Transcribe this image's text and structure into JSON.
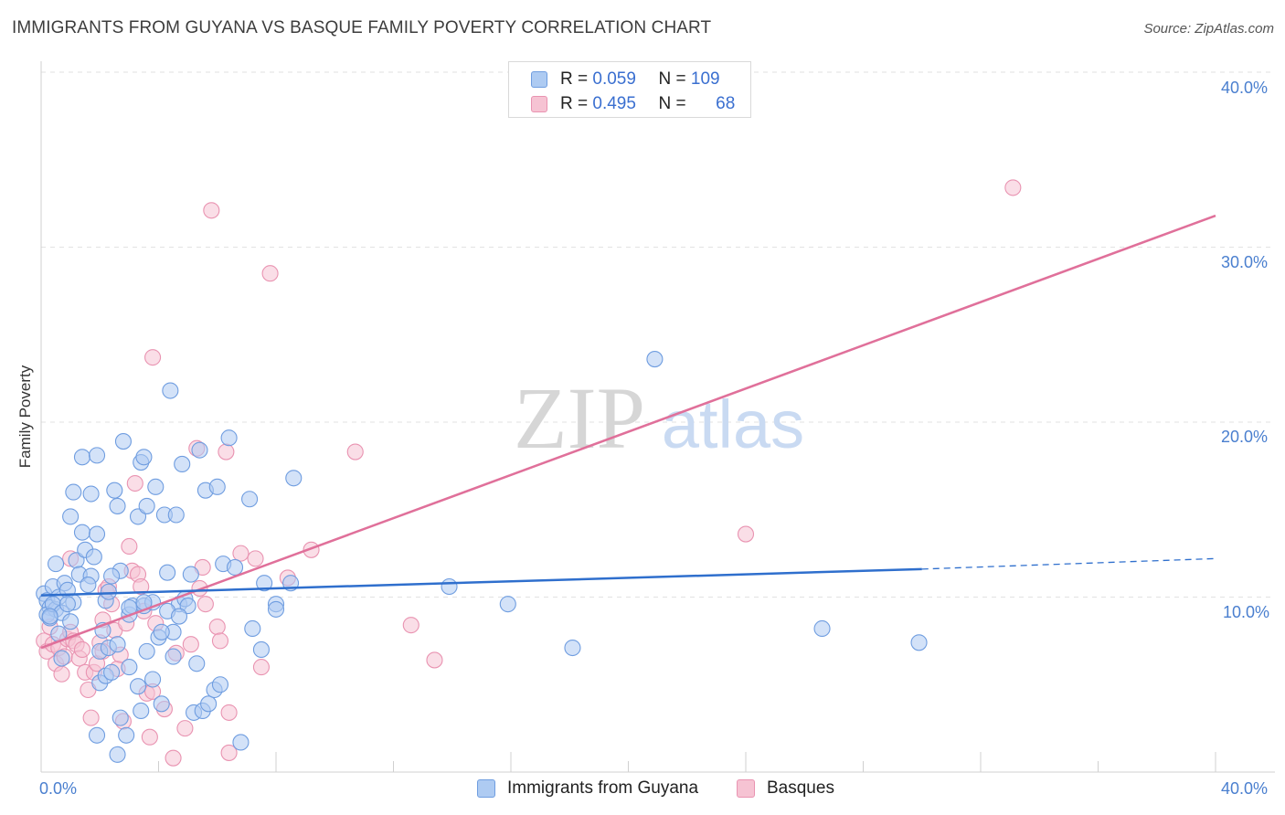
{
  "header": {
    "title": "IMMIGRANTS FROM GUYANA VS BASQUE FAMILY POVERTY CORRELATION CHART",
    "source": "Source: ZipAtlas.com"
  },
  "watermark": {
    "zip": "ZIP",
    "atlas": "atlas"
  },
  "legend": {
    "rows": [
      {
        "r_label": "R =",
        "r_value": "0.059",
        "n_label": "N =",
        "n_value": "109"
      },
      {
        "r_label": "R =",
        "r_value": "0.495",
        "n_label": "N =",
        "n_value": "68"
      }
    ]
  },
  "colors": {
    "series1_fill": "#aecbf2",
    "series1_stroke": "#6f9de0",
    "series1_line": "#2f6fcd",
    "series2_fill": "#f6c3d3",
    "series2_stroke": "#e993b1",
    "series2_line": "#e0709a",
    "tick_label": "#4a7fcf",
    "grid": "#e2e2e2"
  },
  "chart_data": {
    "type": "scatter",
    "title": "IMMIGRANTS FROM GUYANA VS BASQUE FAMILY POVERTY CORRELATION CHART",
    "xlabel": "",
    "ylabel": "Family Poverty",
    "xlim": [
      0,
      40
    ],
    "ylim": [
      0,
      40
    ],
    "x_tick_labels": [
      "0.0%",
      "40.0%"
    ],
    "y_ticks": [
      10,
      20,
      30,
      40
    ],
    "y_tick_labels": [
      "10.0%",
      "20.0%",
      "30.0%",
      "40.0%"
    ],
    "grid": true,
    "legend_position": "bottom",
    "series": [
      {
        "name": "Immigrants from Guyana",
        "r": 0.059,
        "n": 109,
        "trend": {
          "x": [
            0,
            30
          ],
          "y": [
            10.1,
            11.6
          ],
          "dashed_to_x": 40,
          "dashed_y": 12.2
        },
        "points": [
          [
            0.1,
            10.2
          ],
          [
            0.2,
            9.8
          ],
          [
            0.3,
            9.4
          ],
          [
            0.2,
            9.0
          ],
          [
            0.4,
            10.6
          ],
          [
            0.5,
            9.3
          ],
          [
            0.3,
            8.8
          ],
          [
            0.6,
            10.0
          ],
          [
            0.4,
            9.6
          ],
          [
            0.7,
            9.1
          ],
          [
            0.8,
            10.8
          ],
          [
            0.9,
            10.4
          ],
          [
            1.0,
            8.6
          ],
          [
            0.6,
            7.9
          ],
          [
            1.1,
            9.7
          ],
          [
            1.2,
            12.1
          ],
          [
            1.0,
            14.6
          ],
          [
            1.1,
            16.0
          ],
          [
            1.4,
            13.7
          ],
          [
            1.5,
            12.7
          ],
          [
            1.4,
            18.0
          ],
          [
            1.7,
            15.9
          ],
          [
            1.8,
            12.3
          ],
          [
            1.9,
            13.6
          ],
          [
            1.9,
            18.1
          ],
          [
            2.2,
            9.8
          ],
          [
            2.3,
            10.3
          ],
          [
            2.1,
            8.1
          ],
          [
            2.0,
            6.9
          ],
          [
            2.3,
            7.1
          ],
          [
            2.0,
            5.1
          ],
          [
            2.2,
            5.5
          ],
          [
            2.5,
            16.1
          ],
          [
            2.6,
            15.2
          ],
          [
            2.7,
            11.5
          ],
          [
            2.8,
            18.9
          ],
          [
            2.4,
            5.7
          ],
          [
            2.6,
            7.3
          ],
          [
            3.0,
            9.0
          ],
          [
            3.1,
            9.5
          ],
          [
            3.0,
            6.0
          ],
          [
            3.3,
            14.6
          ],
          [
            3.4,
            17.7
          ],
          [
            3.5,
            18.0
          ],
          [
            3.6,
            15.2
          ],
          [
            3.5,
            9.5
          ],
          [
            3.3,
            4.9
          ],
          [
            3.4,
            3.5
          ],
          [
            3.6,
            6.9
          ],
          [
            3.8,
            5.3
          ],
          [
            3.8,
            9.7
          ],
          [
            3.9,
            16.3
          ],
          [
            4.0,
            7.7
          ],
          [
            4.1,
            3.9
          ],
          [
            4.2,
            14.7
          ],
          [
            4.3,
            11.4
          ],
          [
            4.4,
            21.8
          ],
          [
            4.5,
            6.6
          ],
          [
            4.5,
            8.0
          ],
          [
            4.6,
            14.7
          ],
          [
            4.7,
            9.6
          ],
          [
            4.8,
            17.6
          ],
          [
            4.9,
            9.9
          ],
          [
            5.0,
            9.5
          ],
          [
            5.1,
            11.3
          ],
          [
            5.2,
            3.4
          ],
          [
            5.3,
            6.2
          ],
          [
            5.4,
            18.4
          ],
          [
            5.5,
            3.5
          ],
          [
            5.6,
            16.1
          ],
          [
            5.7,
            3.9
          ],
          [
            5.9,
            4.7
          ],
          [
            6.0,
            16.3
          ],
          [
            6.1,
            5.0
          ],
          [
            6.2,
            11.9
          ],
          [
            6.4,
            19.1
          ],
          [
            6.6,
            11.7
          ],
          [
            6.8,
            1.7
          ],
          [
            7.1,
            15.6
          ],
          [
            7.2,
            8.2
          ],
          [
            7.5,
            7.0
          ],
          [
            7.6,
            10.8
          ],
          [
            8.0,
            9.6
          ],
          [
            8.0,
            9.3
          ],
          [
            8.5,
            10.8
          ],
          [
            8.6,
            16.8
          ],
          [
            13.9,
            10.6
          ],
          [
            15.9,
            9.6
          ],
          [
            18.1,
            7.1
          ],
          [
            20.9,
            23.6
          ],
          [
            26.6,
            8.2
          ],
          [
            29.9,
            7.4
          ],
          [
            0.5,
            11.9
          ],
          [
            0.9,
            9.6
          ],
          [
            1.3,
            11.3
          ],
          [
            1.7,
            11.2
          ],
          [
            2.4,
            11.2
          ],
          [
            2.9,
            2.1
          ],
          [
            3.0,
            9.4
          ],
          [
            3.5,
            9.7
          ],
          [
            4.1,
            8.0
          ],
          [
            4.3,
            9.2
          ],
          [
            4.7,
            8.9
          ],
          [
            2.6,
            1.0
          ],
          [
            0.3,
            8.9
          ],
          [
            1.6,
            10.7
          ],
          [
            1.9,
            2.1
          ],
          [
            0.7,
            6.5
          ],
          [
            2.7,
            3.1
          ]
        ]
      },
      {
        "name": "Basques",
        "r": 0.495,
        "n": 68,
        "trend": {
          "x": [
            0,
            40
          ],
          "y": [
            7.1,
            31.8
          ]
        },
        "points": [
          [
            0.1,
            7.5
          ],
          [
            0.2,
            6.9
          ],
          [
            0.3,
            8.3
          ],
          [
            0.4,
            7.3
          ],
          [
            0.5,
            6.2
          ],
          [
            0.6,
            7.1
          ],
          [
            0.7,
            5.6
          ],
          [
            0.8,
            6.6
          ],
          [
            0.9,
            7.6
          ],
          [
            1.0,
            8.0
          ],
          [
            1.1,
            7.5
          ],
          [
            1.2,
            7.3
          ],
          [
            1.3,
            6.5
          ],
          [
            1.4,
            7.0
          ],
          [
            1.5,
            5.7
          ],
          [
            1.6,
            4.7
          ],
          [
            1.7,
            3.1
          ],
          [
            1.8,
            5.7
          ],
          [
            1.9,
            6.2
          ],
          [
            2.0,
            7.4
          ],
          [
            2.1,
            8.7
          ],
          [
            2.2,
            10.4
          ],
          [
            2.3,
            10.6
          ],
          [
            2.4,
            9.6
          ],
          [
            2.5,
            8.1
          ],
          [
            2.6,
            5.9
          ],
          [
            2.7,
            6.7
          ],
          [
            2.8,
            2.9
          ],
          [
            2.9,
            8.5
          ],
          [
            3.0,
            12.9
          ],
          [
            3.1,
            11.5
          ],
          [
            3.2,
            16.5
          ],
          [
            3.3,
            11.3
          ],
          [
            3.4,
            10.6
          ],
          [
            3.5,
            9.2
          ],
          [
            3.6,
            4.5
          ],
          [
            3.7,
            2.0
          ],
          [
            3.8,
            4.6
          ],
          [
            3.9,
            8.5
          ],
          [
            4.2,
            3.6
          ],
          [
            4.5,
            0.8
          ],
          [
            4.6,
            6.8
          ],
          [
            4.9,
            2.5
          ],
          [
            5.1,
            7.3
          ],
          [
            5.3,
            18.5
          ],
          [
            5.4,
            10.5
          ],
          [
            5.5,
            11.7
          ],
          [
            5.6,
            9.6
          ],
          [
            5.8,
            32.1
          ],
          [
            6.0,
            8.3
          ],
          [
            6.1,
            7.5
          ],
          [
            6.3,
            18.3
          ],
          [
            6.4,
            3.4
          ],
          [
            6.4,
            1.1
          ],
          [
            6.8,
            12.5
          ],
          [
            7.3,
            12.2
          ],
          [
            7.5,
            6.0
          ],
          [
            7.8,
            28.5
          ],
          [
            8.4,
            11.1
          ],
          [
            9.2,
            12.7
          ],
          [
            10.7,
            18.3
          ],
          [
            12.6,
            8.4
          ],
          [
            13.4,
            6.4
          ],
          [
            3.8,
            23.7
          ],
          [
            24.0,
            13.6
          ],
          [
            33.1,
            33.4
          ],
          [
            2.1,
            6.9
          ],
          [
            1.0,
            12.2
          ]
        ]
      }
    ]
  },
  "bottom_legend": {
    "items": [
      {
        "label": "Immigrants from Guyana"
      },
      {
        "label": "Basques"
      }
    ]
  }
}
